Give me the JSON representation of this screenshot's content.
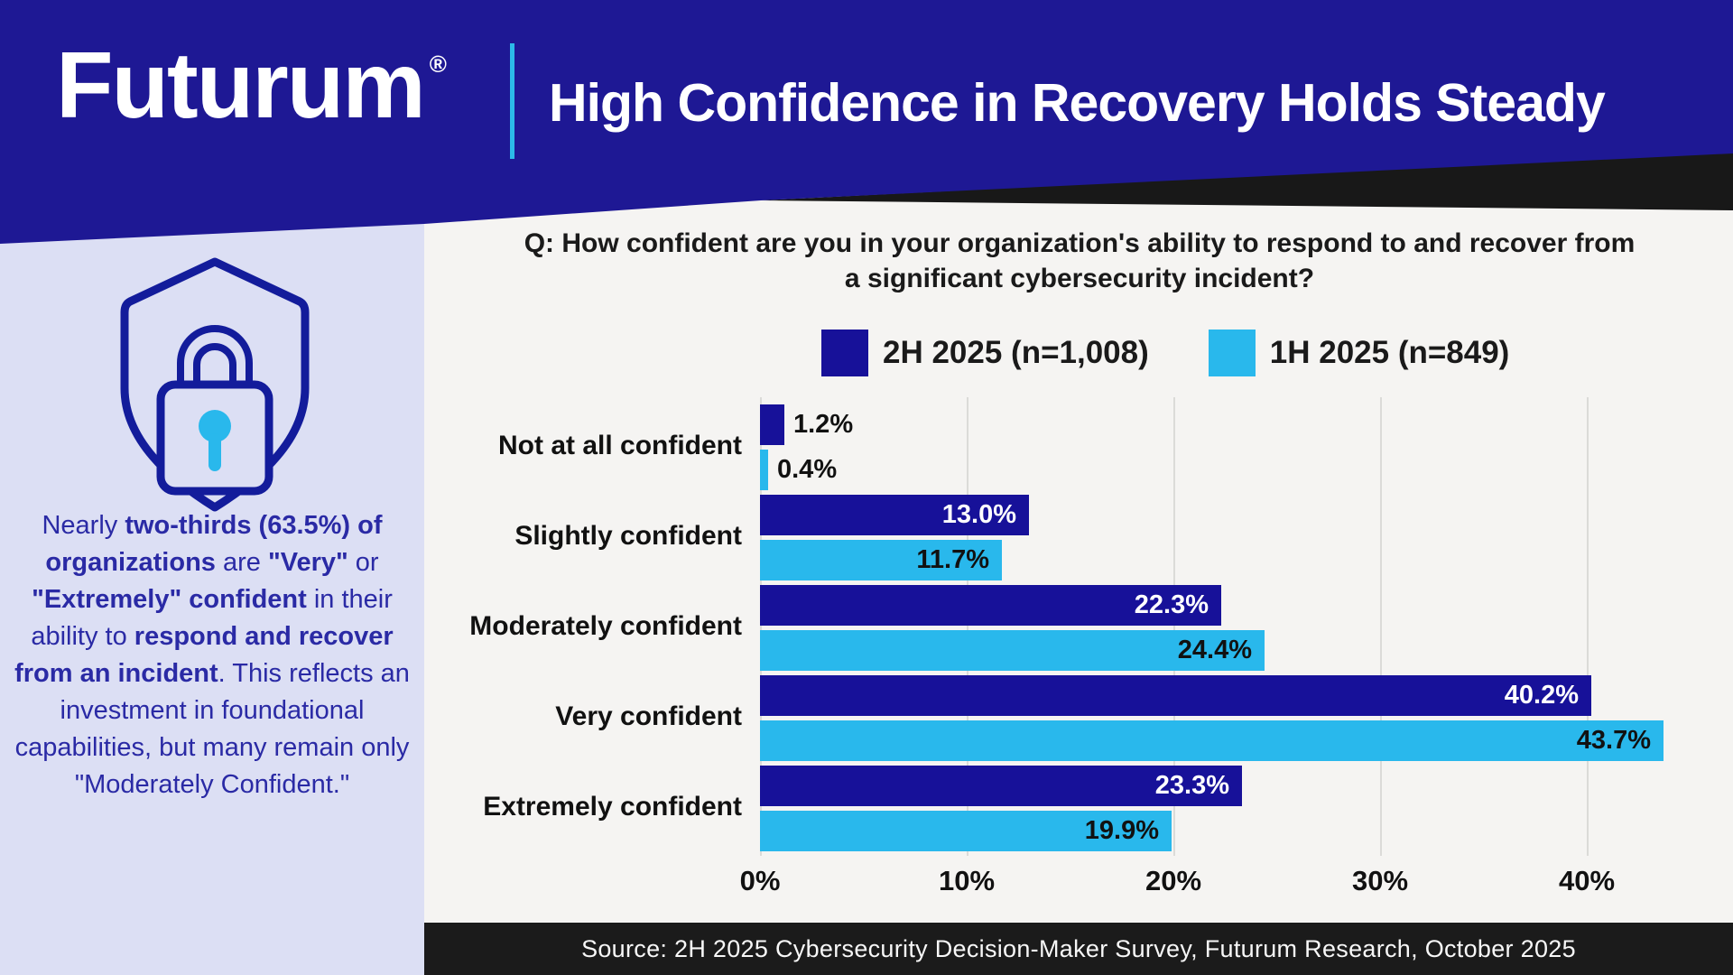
{
  "header": {
    "logo": "Futurum",
    "registered_mark": "®",
    "title": "High Confidence in Recovery Holds Steady",
    "bg_color": "#1e1894",
    "divider_color": "#2cb9e9"
  },
  "sidebar": {
    "icon": "shield-lock-icon",
    "bg_color": "#dcdff4",
    "text_color": "#2a2aa5",
    "note_segments": [
      {
        "text": "Nearly ",
        "bold": false
      },
      {
        "text": "two-thirds (63.5%) of organizations",
        "bold": true
      },
      {
        "text": " are ",
        "bold": false
      },
      {
        "text": "\"Very\"",
        "bold": true
      },
      {
        "text": " or ",
        "bold": false
      },
      {
        "text": "\"Extremely\" confident",
        "bold": true
      },
      {
        "text": " in their ability to ",
        "bold": false
      },
      {
        "text": "respond and recover from an incident",
        "bold": true
      },
      {
        "text": ". This reflects an investment in foundational capabilities, but many remain only \"Moderately Confident.\"",
        "bold": false
      }
    ]
  },
  "chart_data": {
    "type": "bar",
    "orientation": "horizontal",
    "title": "Q: How confident are you in your organization's ability to respond to and recover from a significant cybersecurity incident?",
    "question_line1": "Q: How confident are you in your organization's ability to respond to and recover from",
    "question_line2": "a significant cybersecurity incident?",
    "categories": [
      "Not at all confident",
      "Slightly confident",
      "Moderately confident",
      "Very confident",
      "Extremely confident"
    ],
    "series": [
      {
        "name": "2H 2025 (n=1,008)",
        "color": "#171199",
        "inside_label_color": "#ffffff",
        "values": [
          1.2,
          13.0,
          22.3,
          40.2,
          23.3
        ]
      },
      {
        "name": "1H 2025 (n=849)",
        "color": "#29b8ec",
        "inside_label_color": "#111111",
        "values": [
          0.4,
          11.7,
          24.4,
          43.7,
          19.9
        ]
      }
    ],
    "value_labels": [
      [
        "1.2%",
        "13.0%",
        "22.3%",
        "40.2%",
        "23.3%"
      ],
      [
        "0.4%",
        "11.7%",
        "24.4%",
        "43.7%",
        "19.9%"
      ]
    ],
    "x_ticks": [
      "0%",
      "10%",
      "20%",
      "30%",
      "40%"
    ],
    "x_tick_values": [
      0,
      10,
      20,
      30,
      40
    ],
    "xlim": [
      0,
      47
    ],
    "grid": true,
    "legend_position": "top",
    "value_suffix": "%"
  },
  "footer": {
    "source": "Source: 2H 2025 Cybersecurity Decision-Maker Survey, Futurum Research, October 2025"
  }
}
